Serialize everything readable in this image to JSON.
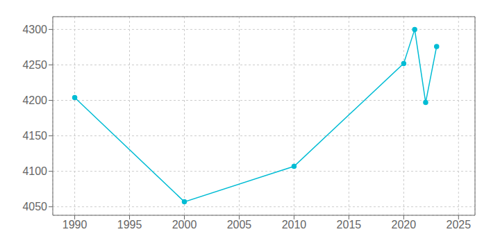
{
  "chart_data": {
    "type": "line",
    "x": [
      1990,
      2000,
      2010,
      2020,
      2021,
      2022,
      2023
    ],
    "values": [
      4204,
      4057,
      4107,
      4252,
      4300,
      4197,
      4276
    ],
    "color": "#00bcd4",
    "marker": "circle",
    "xlim": [
      1988,
      2026.5
    ],
    "ylim": [
      4038,
      4318
    ],
    "xticks": [
      1990,
      1995,
      2000,
      2005,
      2010,
      2015,
      2020,
      2025
    ],
    "yticks": [
      4050,
      4100,
      4150,
      4200,
      4250,
      4300
    ],
    "grid": true
  }
}
